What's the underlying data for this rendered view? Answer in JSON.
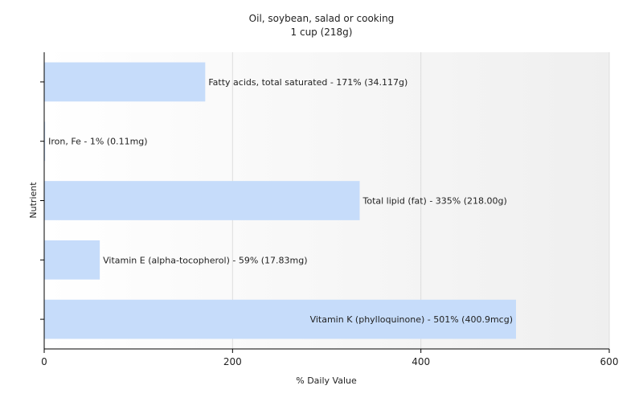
{
  "chart_data": {
    "type": "bar",
    "orientation": "horizontal",
    "title": "Oil, soybean, salad or cooking",
    "subtitle": "1 cup (218g)",
    "xlabel": "% Daily Value",
    "ylabel": "Nutrient",
    "xlim": [
      0,
      600
    ],
    "xticks": [
      0,
      200,
      400,
      600
    ],
    "grid": true,
    "legend": "none",
    "bar_color": "#c6dcfa",
    "categories": [
      "Fatty acids, total saturated",
      "Iron, Fe",
      "Total lipid (fat)",
      "Vitamin E (alpha-tocopherol)",
      "Vitamin K (phylloquinone)"
    ],
    "values": [
      171,
      1,
      335,
      59,
      501
    ],
    "labels": [
      "Fatty acids, total saturated - 171% (34.117g)",
      "Iron, Fe - 1% (0.11mg)",
      "Total lipid (fat) - 335% (218.00g)",
      "Vitamin E (alpha-tocopherol) - 59% (17.83mg)",
      "Vitamin K (phylloquinone) - 501% (400.9mcg)"
    ]
  }
}
